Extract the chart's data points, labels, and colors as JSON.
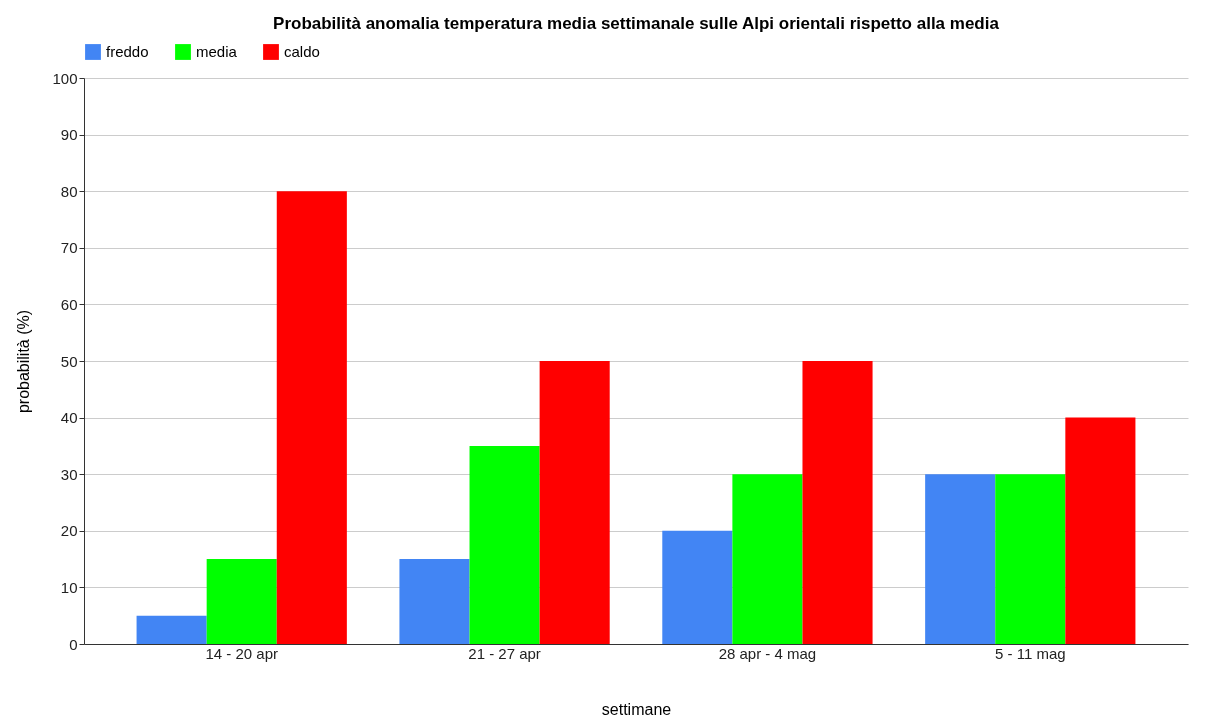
{
  "chart_data": {
    "type": "bar",
    "title": "Probabilità anomalia temperatura media settimanale sulle Alpi orientali rispetto alla media",
    "xlabel": "settimane",
    "ylabel": "probabilità (%)",
    "categories": [
      "14 - 20 apr",
      "21 - 27 apr",
      "28 apr - 4 mag",
      "5 - 11 mag"
    ],
    "series": [
      {
        "name": "freddo",
        "color": "#4285f4",
        "values": [
          5,
          15,
          20,
          30
        ]
      },
      {
        "name": "media",
        "color": "#00ff00",
        "values": [
          15,
          35,
          30,
          30
        ]
      },
      {
        "name": "caldo",
        "color": "#ff0000",
        "values": [
          80,
          50,
          50,
          40
        ]
      }
    ],
    "ylim": [
      0,
      100
    ],
    "yticks": [
      0,
      10,
      20,
      30,
      40,
      50,
      60,
      70,
      80,
      90,
      100
    ],
    "grid": "y",
    "legend": "top"
  }
}
